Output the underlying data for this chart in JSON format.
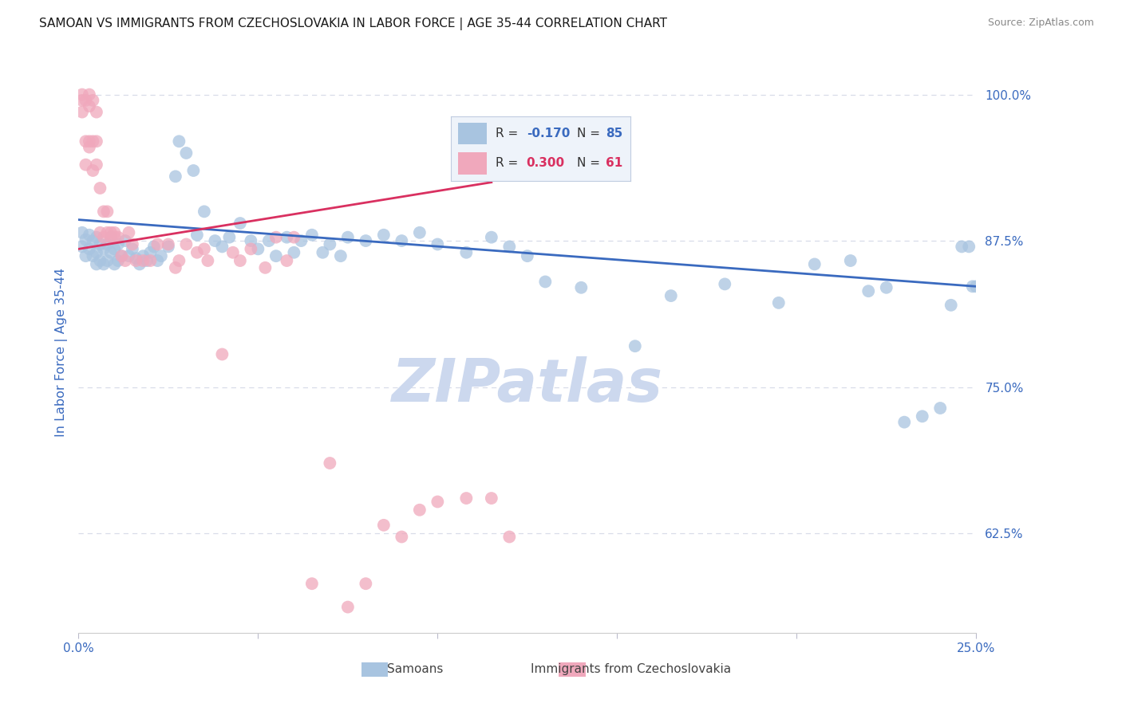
{
  "title": "SAMOAN VS IMMIGRANTS FROM CZECHOSLOVAKIA IN LABOR FORCE | AGE 35-44 CORRELATION CHART",
  "source_text": "Source: ZipAtlas.com",
  "ylabel": "In Labor Force | Age 35-44",
  "xlim": [
    0.0,
    0.25
  ],
  "ylim": [
    0.54,
    1.02
  ],
  "yticks": [
    0.625,
    0.75,
    0.875,
    1.0
  ],
  "ytick_labels": [
    "62.5%",
    "75.0%",
    "87.5%",
    "100.0%"
  ],
  "xticks": [
    0.0,
    0.05,
    0.1,
    0.15,
    0.2,
    0.25
  ],
  "xtick_labels": [
    "0.0%",
    "",
    "",
    "",
    "",
    "25.0%"
  ],
  "blue_color": "#a8c4e0",
  "pink_color": "#f0a8bc",
  "blue_trend_color": "#3a6abf",
  "pink_trend_color": "#d93060",
  "watermark_text": "ZIPatlas",
  "watermark_color": "#ccd8ee",
  "background_color": "#ffffff",
  "grid_color": "#d8dce8",
  "axis_label_color": "#3a6abf",
  "tick_color": "#3a6abf",
  "legend_box_color": "#eef3fa",
  "legend_border_color": "#c0cce0",
  "blue_scatter_x": [
    0.001,
    0.001,
    0.002,
    0.002,
    0.003,
    0.003,
    0.004,
    0.004,
    0.005,
    0.005,
    0.005,
    0.006,
    0.006,
    0.007,
    0.007,
    0.008,
    0.008,
    0.009,
    0.009,
    0.01,
    0.01,
    0.011,
    0.011,
    0.012,
    0.013,
    0.014,
    0.015,
    0.016,
    0.017,
    0.018,
    0.019,
    0.02,
    0.021,
    0.022,
    0.023,
    0.025,
    0.027,
    0.028,
    0.03,
    0.032,
    0.033,
    0.035,
    0.038,
    0.04,
    0.042,
    0.045,
    0.048,
    0.05,
    0.053,
    0.055,
    0.058,
    0.06,
    0.062,
    0.065,
    0.068,
    0.07,
    0.073,
    0.075,
    0.08,
    0.085,
    0.09,
    0.095,
    0.1,
    0.108,
    0.115,
    0.12,
    0.125,
    0.13,
    0.14,
    0.155,
    0.165,
    0.18,
    0.195,
    0.205,
    0.215,
    0.22,
    0.225,
    0.23,
    0.235,
    0.24,
    0.243,
    0.246,
    0.248,
    0.249,
    0.25
  ],
  "blue_scatter_y": [
    0.882,
    0.87,
    0.876,
    0.862,
    0.88,
    0.868,
    0.875,
    0.862,
    0.878,
    0.865,
    0.855,
    0.872,
    0.858,
    0.868,
    0.855,
    0.872,
    0.858,
    0.865,
    0.878,
    0.868,
    0.855,
    0.872,
    0.858,
    0.862,
    0.875,
    0.862,
    0.868,
    0.86,
    0.855,
    0.862,
    0.858,
    0.865,
    0.87,
    0.858,
    0.862,
    0.87,
    0.93,
    0.96,
    0.95,
    0.935,
    0.88,
    0.9,
    0.875,
    0.87,
    0.878,
    0.89,
    0.875,
    0.868,
    0.875,
    0.862,
    0.878,
    0.865,
    0.875,
    0.88,
    0.865,
    0.872,
    0.862,
    0.878,
    0.875,
    0.88,
    0.875,
    0.882,
    0.872,
    0.865,
    0.878,
    0.87,
    0.862,
    0.84,
    0.835,
    0.785,
    0.828,
    0.838,
    0.822,
    0.855,
    0.858,
    0.832,
    0.835,
    0.72,
    0.725,
    0.732,
    0.82,
    0.87,
    0.87,
    0.836,
    0.836
  ],
  "pink_scatter_x": [
    0.001,
    0.001,
    0.001,
    0.002,
    0.002,
    0.002,
    0.003,
    0.003,
    0.003,
    0.003,
    0.004,
    0.004,
    0.004,
    0.005,
    0.005,
    0.005,
    0.006,
    0.006,
    0.007,
    0.007,
    0.008,
    0.008,
    0.009,
    0.009,
    0.01,
    0.01,
    0.011,
    0.012,
    0.013,
    0.014,
    0.015,
    0.016,
    0.018,
    0.02,
    0.022,
    0.025,
    0.027,
    0.03,
    0.033,
    0.036,
    0.04,
    0.043,
    0.048,
    0.052,
    0.055,
    0.06,
    0.065,
    0.07,
    0.075,
    0.08,
    0.085,
    0.09,
    0.095,
    0.1,
    0.108,
    0.115,
    0.12,
    0.058,
    0.045,
    0.035,
    0.028
  ],
  "pink_scatter_y": [
    1.0,
    0.995,
    0.985,
    0.96,
    0.94,
    0.995,
    0.96,
    0.99,
    0.955,
    1.0,
    0.935,
    0.96,
    0.995,
    0.94,
    0.96,
    0.985,
    0.882,
    0.92,
    0.878,
    0.9,
    0.882,
    0.9,
    0.878,
    0.882,
    0.878,
    0.882,
    0.878,
    0.862,
    0.858,
    0.882,
    0.872,
    0.858,
    0.858,
    0.858,
    0.872,
    0.872,
    0.852,
    0.872,
    0.865,
    0.858,
    0.778,
    0.865,
    0.868,
    0.852,
    0.878,
    0.878,
    0.582,
    0.685,
    0.562,
    0.582,
    0.632,
    0.622,
    0.645,
    0.652,
    0.655,
    0.655,
    0.622,
    0.858,
    0.858,
    0.868,
    0.858
  ],
  "blue_trend_x": [
    0.0,
    0.25
  ],
  "blue_trend_y": [
    0.893,
    0.836
  ],
  "pink_trend_x": [
    0.0,
    0.115
  ],
  "pink_trend_y": [
    0.868,
    0.925
  ]
}
